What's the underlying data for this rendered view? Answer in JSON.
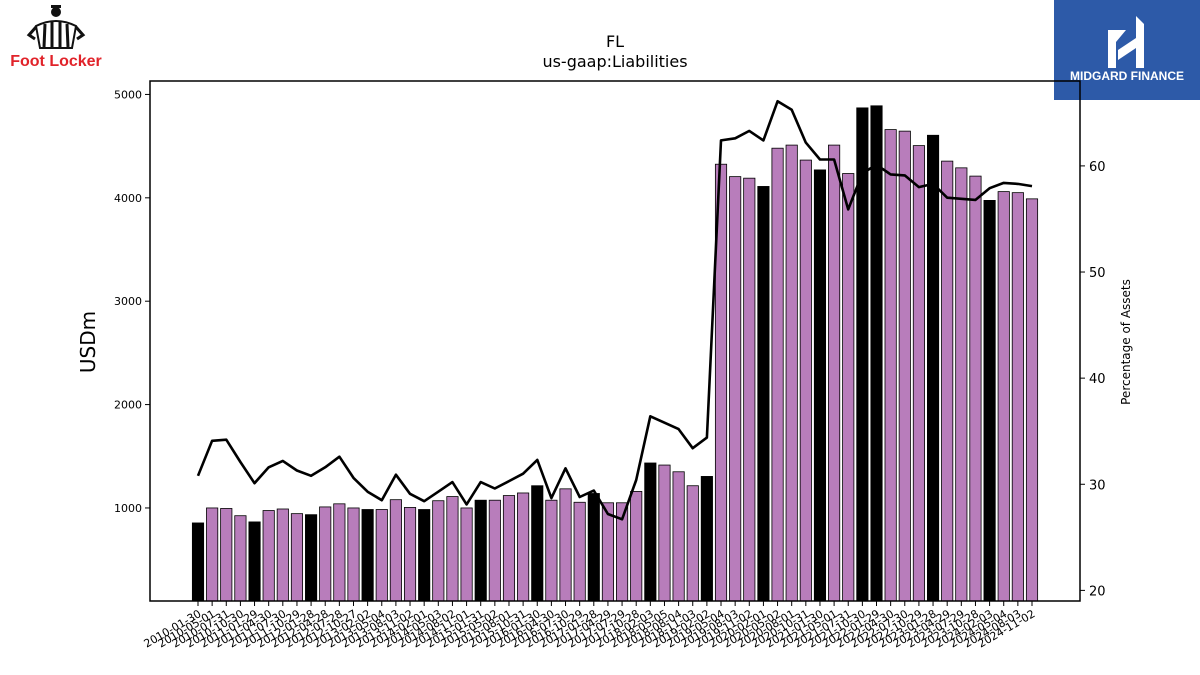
{
  "branding": {
    "company_name": "Foot Locker",
    "company_logo_icon": "referee-mascot-icon",
    "company_color": "#e1232a",
    "publisher_name": "MIDGARD FINANCE",
    "publisher_logo_icon": "midgard-m-icon",
    "publisher_color": "#2d5aa8"
  },
  "colors": {
    "bar_annual": "#000000",
    "bar_quarterly": "#b87dbb",
    "bar_edge": "#000000",
    "line": "#000000"
  },
  "chart_data": {
    "type": "bar",
    "title": "FL",
    "subtitle": "us-gaap:Liabilities",
    "ylabel": "USDm",
    "y2label": "Percentage of Assets",
    "ylim": [
      100,
      5130
    ],
    "y2lim": [
      19,
      68
    ],
    "yticks": [
      1000,
      2000,
      3000,
      4000,
      5000
    ],
    "y2ticks": [
      20,
      30,
      40,
      50,
      60
    ],
    "grid": false,
    "categories": [
      "2010-01-30",
      "2010-05-01",
      "2010-07-31",
      "2010-10-30",
      "2011-01-29",
      "2011-04-30",
      "2011-07-30",
      "2011-10-29",
      "2012-01-28",
      "2012-04-28",
      "2012-07-28",
      "2012-10-27",
      "2013-02-02",
      "2013-05-04",
      "2013-08-03",
      "2013-11-02",
      "2014-02-01",
      "2014-05-03",
      "2014-08-02",
      "2014-11-01",
      "2015-01-31",
      "2015-05-02",
      "2015-08-01",
      "2015-10-31",
      "2016-01-30",
      "2016-04-30",
      "2016-07-30",
      "2016-10-29",
      "2017-01-28",
      "2017-04-29",
      "2017-07-29",
      "2017-10-28",
      "2018-02-03",
      "2018-05-05",
      "2018-08-04",
      "2018-11-03",
      "2019-02-02",
      "2019-05-04",
      "2019-08-03",
      "2019-11-02",
      "2020-02-01",
      "2020-05-02",
      "2020-08-01",
      "2020-10-31",
      "2021-01-30",
      "2021-05-01",
      "2021-07-31",
      "2021-10-30",
      "2022-01-29",
      "2022-04-30",
      "2022-07-30",
      "2022-10-29",
      "2023-01-28",
      "2023-04-29",
      "2023-07-29",
      "2023-10-28",
      "2024-02-03",
      "2024-05-04",
      "2024-08-03",
      "2024-11-02"
    ],
    "series": [
      {
        "kind": "bar",
        "axis": "left",
        "values": [
          855,
          1000,
          995,
          925,
          865,
          975,
          990,
          945,
          935,
          1010,
          1040,
          1000,
          985,
          985,
          1080,
          1005,
          985,
          1070,
          1110,
          1000,
          1075,
          1075,
          1120,
          1145,
          1215,
          1075,
          1185,
          1055,
          1140,
          1050,
          1050,
          1160,
          1435,
          1415,
          1350,
          1215,
          1305,
          4325,
          4205,
          4190,
          4110,
          4480,
          4510,
          4365,
          4270,
          4510,
          4235,
          4870,
          4890,
          4660,
          4645,
          4505,
          4605,
          4355,
          4290,
          4210,
          3975,
          4060,
          4050,
          3990
        ],
        "period_type": [
          "annual",
          "quarterly",
          "quarterly",
          "quarterly",
          "annual",
          "quarterly",
          "quarterly",
          "quarterly",
          "annual",
          "quarterly",
          "quarterly",
          "quarterly",
          "annual",
          "quarterly",
          "quarterly",
          "quarterly",
          "annual",
          "quarterly",
          "quarterly",
          "quarterly",
          "annual",
          "quarterly",
          "quarterly",
          "quarterly",
          "annual",
          "quarterly",
          "quarterly",
          "quarterly",
          "annual",
          "quarterly",
          "quarterly",
          "quarterly",
          "annual",
          "quarterly",
          "quarterly",
          "quarterly",
          "annual",
          "quarterly",
          "quarterly",
          "quarterly",
          "annual",
          "quarterly",
          "quarterly",
          "quarterly",
          "annual",
          "quarterly",
          "quarterly",
          "annual",
          "annual",
          "quarterly",
          "quarterly",
          "quarterly",
          "annual",
          "quarterly",
          "quarterly",
          "quarterly",
          "annual",
          "quarterly",
          "quarterly",
          "quarterly"
        ]
      },
      {
        "kind": "line",
        "axis": "right",
        "values": [
          30.8,
          34.1,
          34.2,
          32.1,
          30.1,
          31.6,
          32.2,
          31.3,
          30.8,
          31.6,
          32.6,
          30.6,
          29.3,
          28.5,
          30.9,
          29.1,
          28.4,
          29.3,
          30.2,
          28.1,
          30.2,
          29.6,
          30.3,
          31.0,
          32.3,
          28.7,
          31.5,
          28.8,
          29.4,
          27.2,
          26.7,
          30.4,
          36.4,
          35.8,
          35.2,
          33.4,
          34.4,
          62.4,
          62.6,
          63.3,
          62.4,
          66.1,
          65.3,
          62.2,
          60.6,
          60.6,
          55.9,
          59.3,
          60.1,
          59.2,
          59.1,
          58.0,
          58.3,
          57.0,
          56.9,
          56.8,
          57.9,
          58.4,
          58.3,
          58.1
        ]
      }
    ]
  }
}
